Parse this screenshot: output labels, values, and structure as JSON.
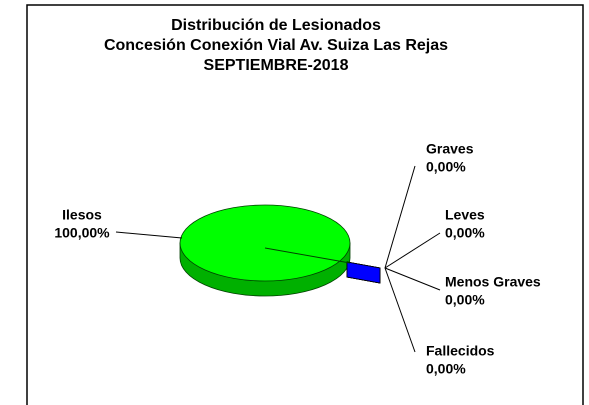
{
  "chart_data": {
    "type": "pie3d",
    "title_lines": [
      "Distribución de Lesionados",
      "Concesión Conexión Vial Av. Suiza Las Rejas",
      "SEPTIEMBRE-2018"
    ],
    "categories": [
      "Ilesos",
      "Graves",
      "Leves",
      "Menos Graves",
      "Fallecidos"
    ],
    "values": [
      100,
      0,
      0,
      0,
      0
    ],
    "value_labels": [
      "100,00%",
      "0,00%",
      "0,00%",
      "0,00%",
      "0,00%"
    ],
    "colors": [
      "#00ff00",
      "#0000ff",
      "#0000ff",
      "#0000ff",
      "#0000ff"
    ]
  }
}
